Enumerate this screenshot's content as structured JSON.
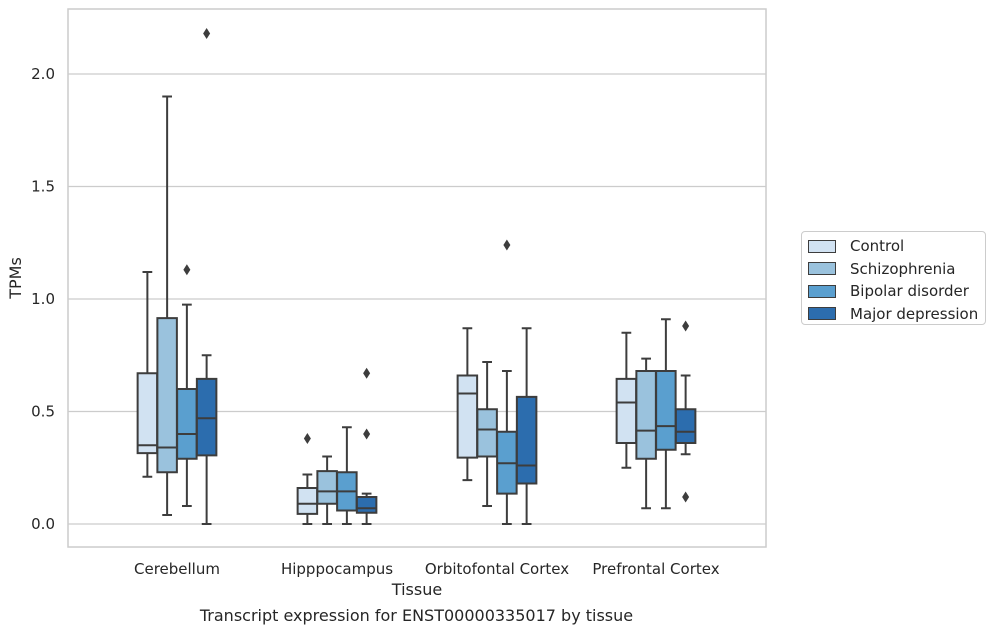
{
  "chart_data": {
    "type": "box",
    "title": "",
    "caption": "Transcript expression for ENST00000335017 by tissue",
    "xlabel": "Tissue",
    "ylabel": "TPMs",
    "ylim": [
      -0.105,
      2.29
    ],
    "yticks": [
      "0.0",
      "0.5",
      "1.0",
      "1.5",
      "2.0"
    ],
    "ytick_values": [
      0.0,
      0.5,
      1.0,
      1.5,
      2.0
    ],
    "grid": true,
    "legend_position": "right",
    "categories": [
      "Cerebellum",
      "Hipppocampus",
      "Orbitofontal Cortex",
      "Prefrontal Cortex"
    ],
    "series": [
      {
        "name": "Control",
        "color": "#d1e2f2",
        "boxes": [
          {
            "whislo": 0.21,
            "q1": 0.315,
            "med": 0.35,
            "q3": 0.67,
            "whishi": 1.12,
            "fliers": []
          },
          {
            "whislo": 0.0,
            "q1": 0.045,
            "med": 0.09,
            "q3": 0.16,
            "whishi": 0.22,
            "fliers": [
              0.38
            ]
          },
          {
            "whislo": 0.195,
            "q1": 0.295,
            "med": 0.58,
            "q3": 0.66,
            "whishi": 0.87,
            "fliers": []
          },
          {
            "whislo": 0.25,
            "q1": 0.36,
            "med": 0.54,
            "q3": 0.645,
            "whishi": 0.85,
            "fliers": []
          }
        ]
      },
      {
        "name": "Schizophrenia",
        "color": "#9ac2dd",
        "boxes": [
          {
            "whislo": 0.04,
            "q1": 0.23,
            "med": 0.34,
            "q3": 0.915,
            "whishi": 1.9,
            "fliers": []
          },
          {
            "whislo": 0.0,
            "q1": 0.09,
            "med": 0.145,
            "q3": 0.235,
            "whishi": 0.3,
            "fliers": []
          },
          {
            "whislo": 0.08,
            "q1": 0.3,
            "med": 0.42,
            "q3": 0.51,
            "whishi": 0.72,
            "fliers": []
          },
          {
            "whislo": 0.07,
            "q1": 0.29,
            "med": 0.415,
            "q3": 0.68,
            "whishi": 0.735,
            "fliers": []
          }
        ]
      },
      {
        "name": "Bipolar disorder",
        "color": "#5a9fcf",
        "boxes": [
          {
            "whislo": 0.08,
            "q1": 0.29,
            "med": 0.4,
            "q3": 0.6,
            "whishi": 0.975,
            "fliers": [
              1.13
            ]
          },
          {
            "whislo": 0.0,
            "q1": 0.06,
            "med": 0.145,
            "q3": 0.23,
            "whishi": 0.43,
            "fliers": []
          },
          {
            "whislo": 0.0,
            "q1": 0.135,
            "med": 0.27,
            "q3": 0.41,
            "whishi": 0.68,
            "fliers": [
              1.24
            ]
          },
          {
            "whislo": 0.07,
            "q1": 0.33,
            "med": 0.435,
            "q3": 0.68,
            "whishi": 0.91,
            "fliers": []
          }
        ]
      },
      {
        "name": "Major depression",
        "color": "#2c6dae",
        "boxes": [
          {
            "whislo": 0.0,
            "q1": 0.305,
            "med": 0.47,
            "q3": 0.645,
            "whishi": 0.75,
            "fliers": [
              2.18
            ]
          },
          {
            "whislo": 0.0,
            "q1": 0.05,
            "med": 0.07,
            "q3": 0.12,
            "whishi": 0.135,
            "fliers": [
              0.67,
              0.4
            ]
          },
          {
            "whislo": 0.0,
            "q1": 0.18,
            "med": 0.26,
            "q3": 0.565,
            "whishi": 0.87,
            "fliers": []
          },
          {
            "whislo": 0.31,
            "q1": 0.36,
            "med": 0.41,
            "q3": 0.51,
            "whishi": 0.66,
            "fliers": [
              0.88,
              0.12
            ]
          }
        ]
      }
    ]
  }
}
